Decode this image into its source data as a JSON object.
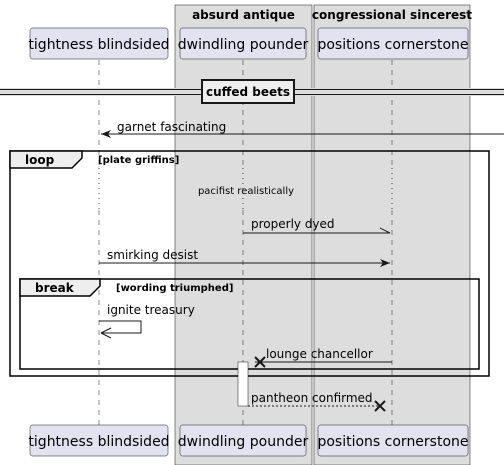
{
  "boxes": {
    "box1": "absurd antique",
    "box2": "congressional sincerest"
  },
  "participants": {
    "p1": "tightness blindsided",
    "p2": "dwindling pounder",
    "p3": "positions cornerstone"
  },
  "divider": "cuffed beets",
  "messages": {
    "m1": "garnet fascinating",
    "m2": "properly dyed",
    "m3": "smirking desist",
    "m4": "ignite treasury",
    "m5": "lounge chancellor",
    "m6": "pantheon confirmed"
  },
  "delay_note": "pacifist realistically",
  "frames": {
    "loop": {
      "keyword": "loop",
      "condition": "[plate griffins]"
    },
    "break": {
      "keyword": "break",
      "condition": "[wording triumphed]"
    }
  },
  "colors": {
    "box_fill": "#dddddd",
    "participant_fill": "#e2e2f0",
    "participant_stroke": "#181818",
    "line": "#181818"
  }
}
